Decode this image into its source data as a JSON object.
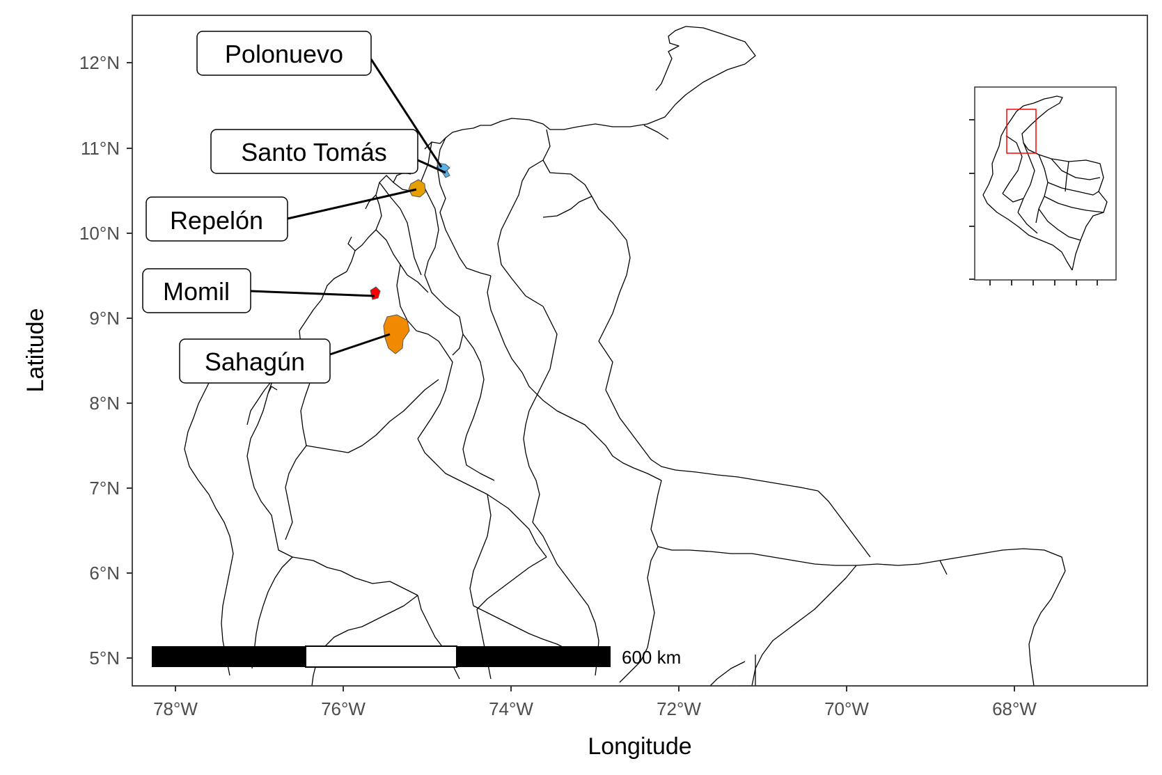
{
  "axes": {
    "xlabel": "Longitude",
    "ylabel": "Latitude",
    "x_ticks": [
      "78°W",
      "76°W",
      "74°W",
      "72°W",
      "70°W",
      "68°W"
    ],
    "y_ticks": [
      "12°N",
      "11°N",
      "10°N",
      "9°N",
      "8°N",
      "7°N",
      "6°N",
      "5°N"
    ]
  },
  "municipalities": [
    {
      "name": "Polonuevo",
      "color": "#56b4e9"
    },
    {
      "name": "Santo Tomás",
      "color": "#56b4e9"
    },
    {
      "name": "Repelón",
      "color": "#e69f00"
    },
    {
      "name": "Momil",
      "color": "#ff0000"
    },
    {
      "name": "Sahagún",
      "color": "#f28a00"
    }
  ],
  "scale_bar": {
    "label": "600 km"
  },
  "inset": {
    "highlight_color": "#ff0000"
  }
}
